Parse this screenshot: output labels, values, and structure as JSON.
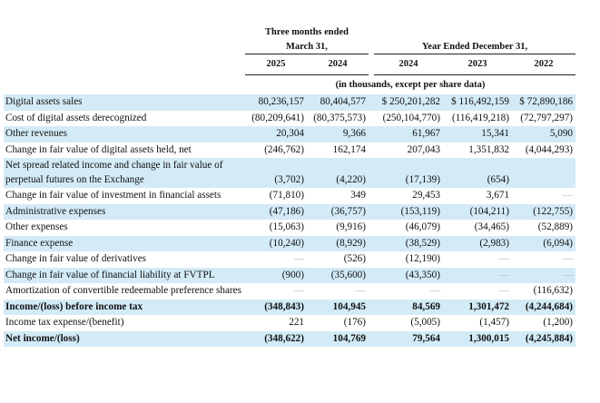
{
  "header": {
    "three_months": "Three months ended March 31,",
    "year_ended": "Year Ended December 31,",
    "years": [
      "2025",
      "2024",
      "2024",
      "2023",
      "2022"
    ],
    "units": "(in thousands, except per share data)"
  },
  "table": {
    "rows": [
      {
        "label": "Digital assets sales",
        "values": [
          "80,236,157",
          "80,404,577",
          "$ 250,201,282",
          "$ 116,492,159",
          "$ 72,890,186"
        ],
        "shaded": true,
        "bold": false
      },
      {
        "label": "Cost of digital assets derecognized",
        "values": [
          "(80,209,641)",
          "(80,375,573)",
          "(250,104,770)",
          "(116,419,218)",
          "(72,797,297)"
        ],
        "shaded": false,
        "bold": false
      },
      {
        "label": "Other revenues",
        "values": [
          "20,304",
          "9,366",
          "61,967",
          "15,341",
          "5,090"
        ],
        "shaded": true,
        "bold": false
      },
      {
        "label": "Change in fair value of digital assets held, net",
        "values": [
          "(246,762)",
          "162,174",
          "207,043",
          "1,351,832",
          "(4,044,293)"
        ],
        "shaded": false,
        "bold": false
      },
      {
        "label": "Net spread related income and change in fair value of perpetual futures on the Exchange",
        "values": [
          "(3,702)",
          "(4,220)",
          "(17,139)",
          "(654)",
          null
        ],
        "shaded": true,
        "bold": false
      },
      {
        "label": "Change in fair value of investment in financial assets",
        "values": [
          "(71,810)",
          "349",
          "29,453",
          "3,671",
          "—"
        ],
        "shaded": false,
        "bold": false
      },
      {
        "label": "Administrative expenses",
        "values": [
          "(47,186)",
          "(36,757)",
          "(153,119)",
          "(104,211)",
          "(122,755)"
        ],
        "shaded": true,
        "bold": false
      },
      {
        "label": "Other expenses",
        "values": [
          "(15,063)",
          "(9,916)",
          "(46,079)",
          "(34,465)",
          "(52,889)"
        ],
        "shaded": false,
        "bold": false
      },
      {
        "label": "Finance expense",
        "values": [
          "(10,240)",
          "(8,929)",
          "(38,529)",
          "(2,983)",
          "(6,094)"
        ],
        "shaded": true,
        "bold": false
      },
      {
        "label": "Change in fair value of derivatives",
        "values": [
          "—",
          "(526)",
          "(12,190)",
          "—",
          "—"
        ],
        "shaded": false,
        "bold": false
      },
      {
        "label": "Change in fair value of financial liability at FVTPL",
        "values": [
          "(900)",
          "(35,600)",
          "(43,350)",
          "—",
          "—"
        ],
        "shaded": true,
        "bold": false
      },
      {
        "label": "Amortization of convertible redeemable preference shares",
        "values": [
          "—",
          "—",
          "—",
          "—",
          "(116,632)"
        ],
        "shaded": false,
        "bold": false
      },
      {
        "label": "Income/(loss) before income tax",
        "values": [
          "(348,843)",
          "104,945",
          "84,569",
          "1,301,472",
          "(4,244,684)"
        ],
        "shaded": true,
        "bold": true
      },
      {
        "label": "Income tax expense/(benefit)",
        "values": [
          "221",
          "(176)",
          "(5,005)",
          "(1,457)",
          "(1,200)"
        ],
        "shaded": false,
        "bold": false
      },
      {
        "label": "Net income/(loss)",
        "values": [
          "(348,622)",
          "104,769",
          "79,564",
          "1,300,015",
          "(4,245,884)"
        ],
        "shaded": true,
        "bold": true
      }
    ]
  }
}
